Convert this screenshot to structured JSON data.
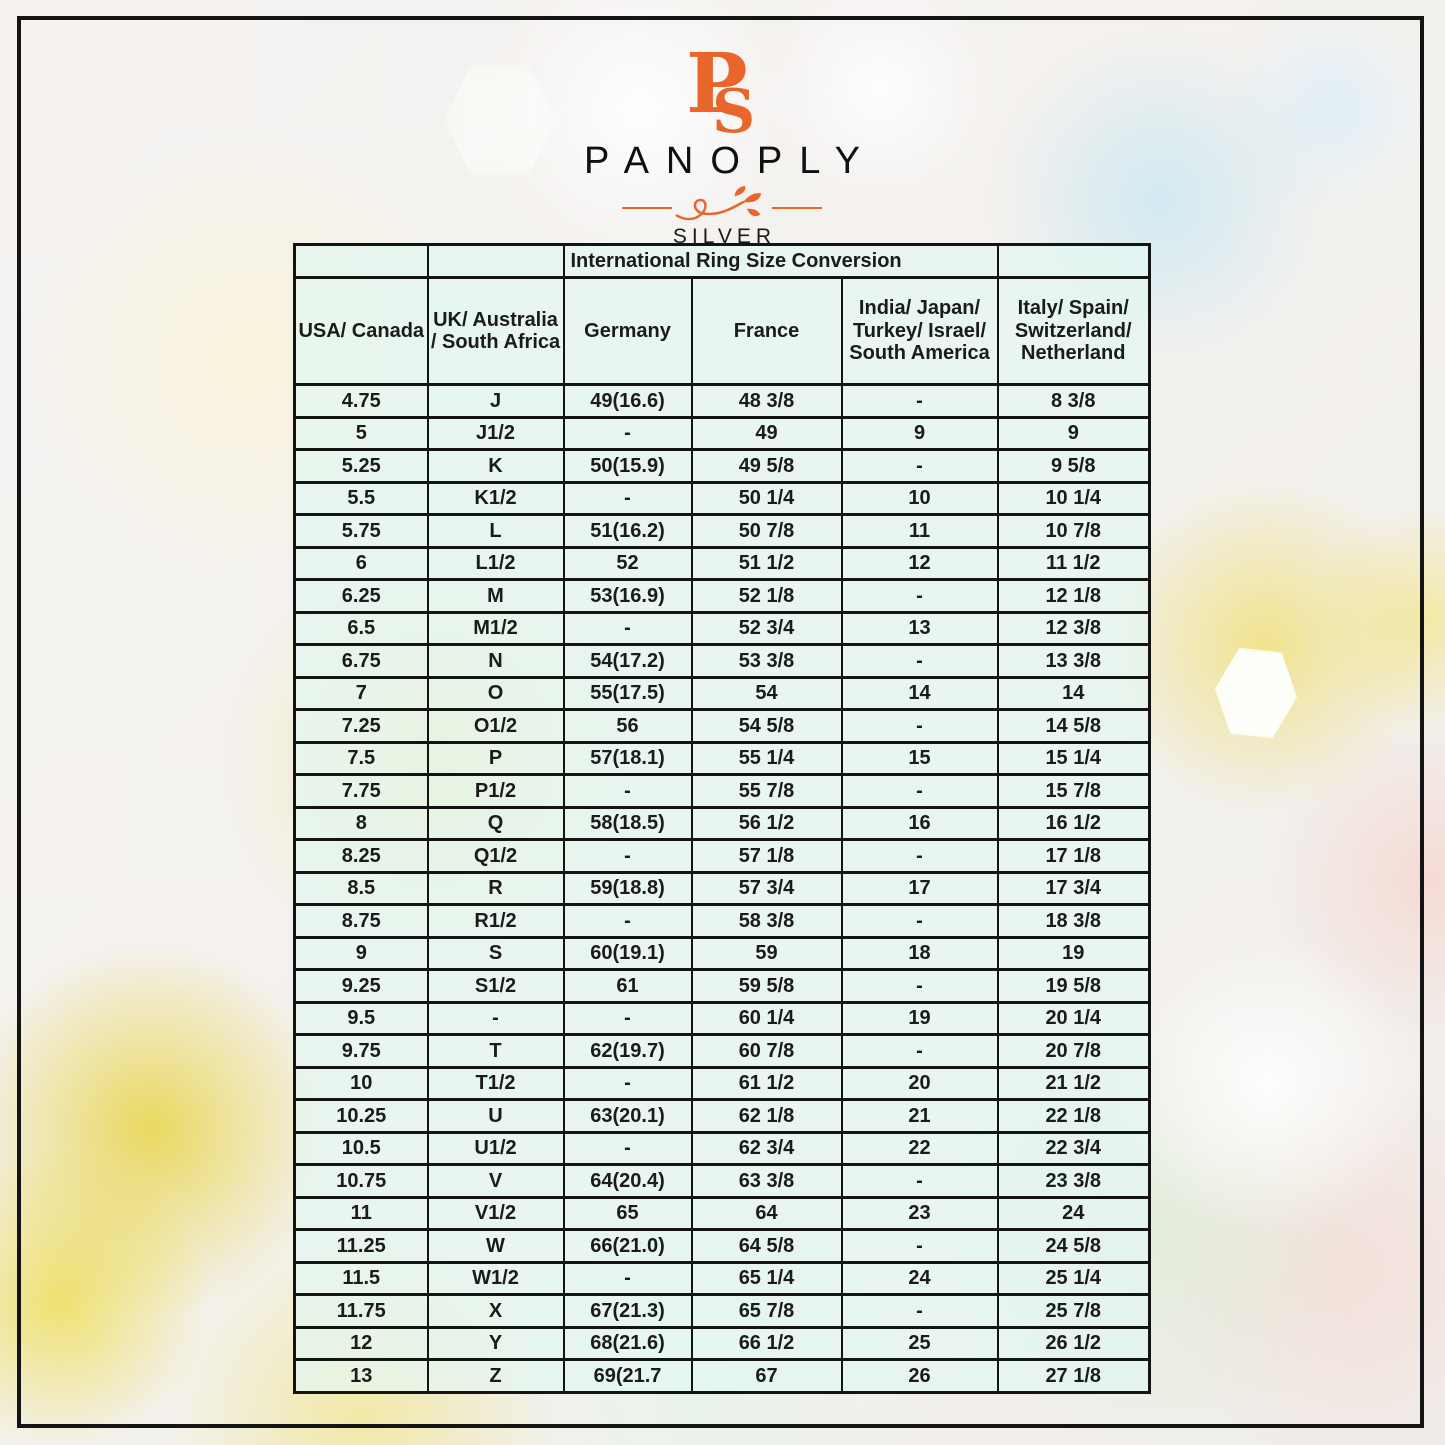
{
  "brand": {
    "monogram_p": "P",
    "monogram_s": "S",
    "name": "PANOPLY",
    "subtitle": "SILVER"
  },
  "colors": {
    "accent_orange": "#e8662c",
    "table_border": "#141414",
    "cell_fill": "#e3f4f0",
    "text": "#1b1b1b"
  },
  "table": {
    "title": "International Ring Size Conversion",
    "columns": [
      "USA/ Canada",
      "UK/ Australia / South Africa",
      "Germany",
      "France",
      "India/ Japan/ Turkey/ Israel/ South America",
      "Italy/ Spain/ Switzerland/ Netherland"
    ],
    "rows": [
      [
        "4.75",
        "J",
        "49(16.6)",
        "48 3/8",
        "-",
        "8 3/8"
      ],
      [
        "5",
        "J1/2",
        "-",
        "49",
        "9",
        "9"
      ],
      [
        "5.25",
        "K",
        "50(15.9)",
        "49 5/8",
        "-",
        "9 5/8"
      ],
      [
        "5.5",
        "K1/2",
        "-",
        "50 1/4",
        "10",
        "10 1/4"
      ],
      [
        "5.75",
        "L",
        "51(16.2)",
        "50 7/8",
        "11",
        "10 7/8"
      ],
      [
        "6",
        "L1/2",
        "52",
        "51 1/2",
        "12",
        "11 1/2"
      ],
      [
        "6.25",
        "M",
        "53(16.9)",
        "52 1/8",
        "-",
        "12 1/8"
      ],
      [
        "6.5",
        "M1/2",
        "-",
        "52 3/4",
        "13",
        "12 3/8"
      ],
      [
        "6.75",
        "N",
        "54(17.2)",
        "53 3/8",
        "-",
        "13 3/8"
      ],
      [
        "7",
        "O",
        "55(17.5)",
        "54",
        "14",
        "14"
      ],
      [
        "7.25",
        "O1/2",
        "56",
        "54 5/8",
        "-",
        "14 5/8"
      ],
      [
        "7.5",
        "P",
        "57(18.1)",
        "55 1/4",
        "15",
        "15 1/4"
      ],
      [
        "7.75",
        "P1/2",
        "-",
        "55 7/8",
        "-",
        "15 7/8"
      ],
      [
        "8",
        "Q",
        "58(18.5)",
        "56 1/2",
        "16",
        "16 1/2"
      ],
      [
        "8.25",
        "Q1/2",
        "-",
        "57 1/8",
        "-",
        "17 1/8"
      ],
      [
        "8.5",
        "R",
        "59(18.8)",
        "57 3/4",
        "17",
        "17 3/4"
      ],
      [
        "8.75",
        "R1/2",
        "-",
        "58 3/8",
        "-",
        "18 3/8"
      ],
      [
        "9",
        "S",
        "60(19.1)",
        "59",
        "18",
        "19"
      ],
      [
        "9.25",
        "S1/2",
        "61",
        "59 5/8",
        "-",
        "19 5/8"
      ],
      [
        "9.5",
        "-",
        "-",
        "60 1/4",
        "19",
        "20 1/4"
      ],
      [
        "9.75",
        "T",
        "62(19.7)",
        "60 7/8",
        "-",
        "20 7/8"
      ],
      [
        "10",
        "T1/2",
        "-",
        "61 1/2",
        "20",
        "21 1/2"
      ],
      [
        "10.25",
        "U",
        "63(20.1)",
        "62 1/8",
        "21",
        "22 1/8"
      ],
      [
        "10.5",
        "U1/2",
        "-",
        "62 3/4",
        "22",
        "22 3/4"
      ],
      [
        "10.75",
        "V",
        "64(20.4)",
        "63 3/8",
        "-",
        "23 3/8"
      ],
      [
        "11",
        "V1/2",
        "65",
        "64",
        "23",
        "24"
      ],
      [
        "11.25",
        "W",
        "66(21.0)",
        "64 5/8",
        "-",
        "24 5/8"
      ],
      [
        "11.5",
        "W1/2",
        "-",
        "65 1/4",
        "24",
        "25 1/4"
      ],
      [
        "11.75",
        "X",
        "67(21.3)",
        "65 7/8",
        "-",
        "25 7/8"
      ],
      [
        "12",
        "Y",
        "68(21.6)",
        "66 1/2",
        "25",
        "26 1/2"
      ],
      [
        "13",
        "Z",
        "69(21.7",
        "67",
        "26",
        "27 1/8"
      ]
    ]
  }
}
